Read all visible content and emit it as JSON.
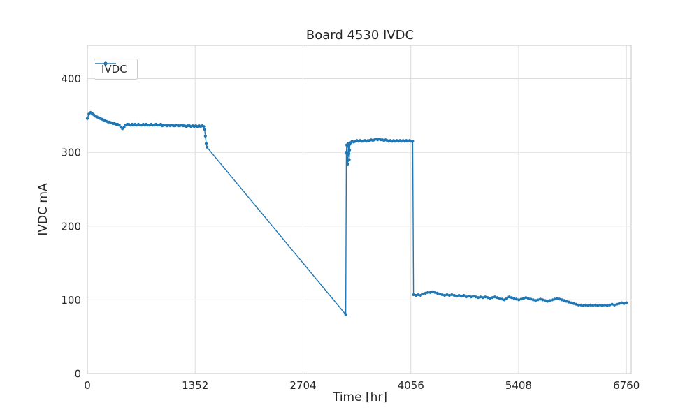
{
  "chart_data": {
    "type": "line",
    "title": "Board 4530 IVDC",
    "xlabel": "Time [hr]",
    "ylabel": "IVDC mA",
    "xlim": [
      0,
      6820
    ],
    "ylim": [
      0,
      445
    ],
    "xticks": [
      0,
      1352,
      2704,
      4056,
      5408,
      6760
    ],
    "yticks": [
      0,
      100,
      200,
      300,
      400
    ],
    "grid": true,
    "legend_position": "upper-left",
    "colors": {
      "grid": "#dcdcdc",
      "spine": "#cfcfcf",
      "text": "#262626",
      "background": "#ffffff"
    },
    "series": [
      {
        "name": "IVDC",
        "color": "#1f77b4",
        "marker": "dot",
        "x": [
          0,
          20,
          40,
          60,
          80,
          100,
          120,
          140,
          160,
          180,
          200,
          220,
          240,
          260,
          280,
          300,
          320,
          340,
          360,
          380,
          400,
          420,
          440,
          460,
          480,
          500,
          520,
          540,
          560,
          580,
          600,
          620,
          640,
          660,
          680,
          700,
          720,
          740,
          760,
          780,
          800,
          820,
          840,
          860,
          880,
          900,
          920,
          940,
          960,
          980,
          1000,
          1020,
          1040,
          1060,
          1080,
          1100,
          1120,
          1140,
          1160,
          1180,
          1200,
          1220,
          1240,
          1260,
          1280,
          1300,
          1320,
          1340,
          1360,
          1380,
          1400,
          1420,
          1440,
          1460,
          1470,
          1480,
          1490,
          1500,
          3240,
          3248,
          3252,
          3256,
          3260,
          3264,
          3268,
          3272,
          3276,
          3280,
          3284,
          3288,
          3292,
          3300,
          3320,
          3340,
          3360,
          3380,
          3400,
          3420,
          3440,
          3460,
          3480,
          3500,
          3520,
          3540,
          3560,
          3580,
          3600,
          3620,
          3640,
          3660,
          3680,
          3700,
          3720,
          3740,
          3760,
          3780,
          3800,
          3820,
          3840,
          3860,
          3880,
          3900,
          3920,
          3940,
          3960,
          3980,
          4000,
          4020,
          4040,
          4060,
          4080,
          4090,
          4120,
          4150,
          4180,
          4210,
          4240,
          4270,
          4300,
          4330,
          4360,
          4390,
          4420,
          4450,
          4480,
          4510,
          4540,
          4570,
          4600,
          4630,
          4660,
          4690,
          4720,
          4750,
          4780,
          4810,
          4840,
          4870,
          4900,
          4930,
          4960,
          4990,
          5020,
          5050,
          5080,
          5110,
          5140,
          5170,
          5200,
          5230,
          5260,
          5290,
          5320,
          5350,
          5380,
          5410,
          5440,
          5470,
          5500,
          5530,
          5560,
          5590,
          5620,
          5650,
          5680,
          5710,
          5740,
          5770,
          5800,
          5830,
          5860,
          5890,
          5920,
          5950,
          5980,
          6010,
          6040,
          6070,
          6100,
          6130,
          6160,
          6190,
          6220,
          6250,
          6280,
          6310,
          6340,
          6370,
          6400,
          6430,
          6460,
          6490,
          6520,
          6550,
          6580,
          6610,
          6640,
          6670,
          6700,
          6730,
          6760
        ],
        "y": [
          346,
          352,
          354,
          353,
          351,
          349,
          348,
          347,
          346,
          345,
          344,
          343,
          342,
          341,
          341,
          340,
          339,
          339,
          338,
          338,
          337,
          334,
          332,
          334,
          337,
          338,
          338,
          337,
          338,
          337,
          338,
          337,
          338,
          337,
          337,
          338,
          337,
          338,
          337,
          337,
          338,
          337,
          337,
          338,
          337,
          337,
          338,
          336,
          337,
          337,
          336,
          337,
          336,
          337,
          336,
          336,
          337,
          336,
          336,
          337,
          336,
          336,
          335,
          336,
          336,
          335,
          336,
          335,
          336,
          335,
          336,
          335,
          336,
          335,
          331,
          322,
          312,
          307,
          80,
          300,
          310,
          298,
          288,
          284,
          296,
          308,
          312,
          298,
          290,
          303,
          311,
          313,
          315,
          314,
          315,
          316,
          315,
          316,
          315,
          315,
          316,
          315,
          316,
          316,
          317,
          316,
          317,
          318,
          317,
          318,
          317,
          317,
          316,
          317,
          316,
          315,
          316,
          315,
          316,
          315,
          316,
          315,
          316,
          315,
          316,
          315,
          316,
          315,
          316,
          315,
          315,
          107,
          106,
          107,
          106,
          108,
          109,
          110,
          110,
          111,
          110,
          109,
          108,
          107,
          106,
          107,
          106,
          107,
          106,
          105,
          106,
          105,
          106,
          104,
          105,
          104,
          105,
          104,
          103,
          104,
          103,
          104,
          103,
          102,
          103,
          104,
          103,
          102,
          101,
          100,
          102,
          104,
          103,
          102,
          101,
          100,
          101,
          102,
          103,
          102,
          101,
          100,
          99,
          100,
          101,
          100,
          99,
          98,
          99,
          100,
          101,
          102,
          101,
          100,
          99,
          98,
          97,
          96,
          95,
          94,
          93,
          93,
          92,
          93,
          92,
          93,
          92,
          93,
          92,
          93,
          92,
          93,
          92,
          93,
          94,
          93,
          94,
          95,
          96,
          95,
          96
        ]
      }
    ]
  }
}
